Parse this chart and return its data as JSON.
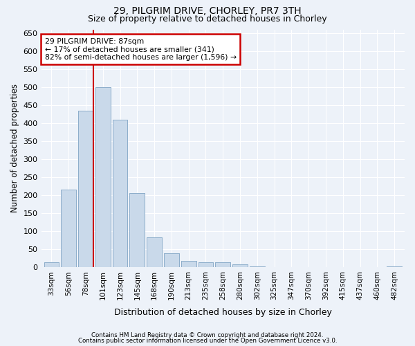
{
  "title1": "29, PILGRIM DRIVE, CHORLEY, PR7 3TH",
  "title2": "Size of property relative to detached houses in Chorley",
  "xlabel": "Distribution of detached houses by size in Chorley",
  "ylabel": "Number of detached properties",
  "footer1": "Contains HM Land Registry data © Crown copyright and database right 2024.",
  "footer2": "Contains public sector information licensed under the Open Government Licence v3.0.",
  "annotation_line1": "29 PILGRIM DRIVE: 87sqm",
  "annotation_line2": "← 17% of detached houses are smaller (341)",
  "annotation_line3": "82% of semi-detached houses are larger (1,596) →",
  "bar_color": "#c9d9ea",
  "bar_edge_color": "#88aac8",
  "vline_color": "#cc0000",
  "annotation_box_edgecolor": "#cc0000",
  "background_color": "#edf2f9",
  "grid_color": "#ffffff",
  "categories": [
    "33sqm",
    "56sqm",
    "78sqm",
    "101sqm",
    "123sqm",
    "145sqm",
    "168sqm",
    "190sqm",
    "213sqm",
    "235sqm",
    "258sqm",
    "280sqm",
    "302sqm",
    "325sqm",
    "347sqm",
    "370sqm",
    "392sqm",
    "415sqm",
    "437sqm",
    "460sqm",
    "482sqm"
  ],
  "values": [
    15,
    215,
    435,
    500,
    410,
    207,
    84,
    40,
    18,
    15,
    15,
    9,
    3,
    1,
    0,
    0,
    0,
    0,
    0,
    0,
    3
  ],
  "ylim": [
    0,
    660
  ],
  "yticks": [
    0,
    50,
    100,
    150,
    200,
    250,
    300,
    350,
    400,
    450,
    500,
    550,
    600,
    650
  ],
  "vline_x_index": 2.45
}
